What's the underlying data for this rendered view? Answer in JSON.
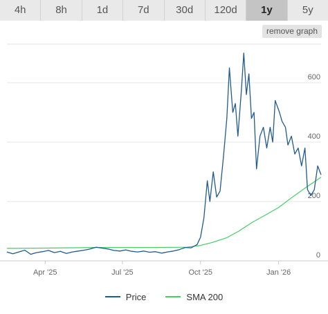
{
  "tabs": [
    {
      "label": "4h"
    },
    {
      "label": "8h"
    },
    {
      "label": "1d"
    },
    {
      "label": "7d"
    },
    {
      "label": "30d"
    },
    {
      "label": "120d"
    },
    {
      "label": "1y"
    },
    {
      "label": "5y"
    }
  ],
  "active_tab": "1y",
  "remove_graph_label": "remove graph",
  "colors": {
    "price": "#1f5a8f",
    "sma": "#44cc66",
    "grid": "#e6e6e6",
    "axis": "#c8c8c8"
  },
  "legend": {
    "price_label": "Price",
    "sma_label": "SMA 200"
  },
  "chart_data": {
    "type": "line",
    "title": "",
    "xlabel": "",
    "ylabel": "",
    "x_range": [
      "2025-02-15",
      "2026-02-20"
    ],
    "ylim": [
      0,
      730
    ],
    "y_ticks": [
      0,
      200,
      400,
      600
    ],
    "x_ticks": [
      {
        "label": "Apr '25",
        "date": "2025-04-01"
      },
      {
        "label": "Jul '25",
        "date": "2025-07-01"
      },
      {
        "label": "Oct '25",
        "date": "2025-10-01"
      },
      {
        "label": "Jan '26",
        "date": "2026-01-01"
      }
    ],
    "grid": true,
    "legend_position": "bottom",
    "series": [
      {
        "name": "Price",
        "points": [
          [
            "2025-02-15",
            30
          ],
          [
            "2025-02-22",
            24
          ],
          [
            "2025-03-01",
            30
          ],
          [
            "2025-03-08",
            36
          ],
          [
            "2025-03-15",
            22
          ],
          [
            "2025-03-22",
            28
          ],
          [
            "2025-03-29",
            31
          ],
          [
            "2025-04-05",
            35
          ],
          [
            "2025-04-12",
            28
          ],
          [
            "2025-04-19",
            32
          ],
          [
            "2025-04-26",
            25
          ],
          [
            "2025-05-03",
            30
          ],
          [
            "2025-05-10",
            33
          ],
          [
            "2025-05-17",
            36
          ],
          [
            "2025-05-24",
            40
          ],
          [
            "2025-05-31",
            46
          ],
          [
            "2025-06-07",
            43
          ],
          [
            "2025-06-14",
            40
          ],
          [
            "2025-06-21",
            35
          ],
          [
            "2025-06-28",
            33
          ],
          [
            "2025-07-05",
            37
          ],
          [
            "2025-07-12",
            32
          ],
          [
            "2025-07-19",
            30
          ],
          [
            "2025-07-26",
            33
          ],
          [
            "2025-08-02",
            29
          ],
          [
            "2025-08-09",
            31
          ],
          [
            "2025-08-16",
            26
          ],
          [
            "2025-08-23",
            30
          ],
          [
            "2025-08-30",
            33
          ],
          [
            "2025-09-06",
            38
          ],
          [
            "2025-09-13",
            45
          ],
          [
            "2025-09-20",
            44
          ],
          [
            "2025-09-27",
            55
          ],
          [
            "2025-10-01",
            80
          ],
          [
            "2025-10-05",
            145
          ],
          [
            "2025-10-09",
            270
          ],
          [
            "2025-10-12",
            200
          ],
          [
            "2025-10-16",
            300
          ],
          [
            "2025-10-20",
            215
          ],
          [
            "2025-10-24",
            235
          ],
          [
            "2025-10-28",
            350
          ],
          [
            "2025-11-01",
            480
          ],
          [
            "2025-11-04",
            650
          ],
          [
            "2025-11-08",
            500
          ],
          [
            "2025-11-11",
            530
          ],
          [
            "2025-11-14",
            420
          ],
          [
            "2025-11-18",
            570
          ],
          [
            "2025-11-21",
            700
          ],
          [
            "2025-11-24",
            560
          ],
          [
            "2025-11-27",
            630
          ],
          [
            "2025-11-30",
            480
          ],
          [
            "2025-12-03",
            500
          ],
          [
            "2025-12-06",
            310
          ],
          [
            "2025-12-10",
            420
          ],
          [
            "2025-12-14",
            450
          ],
          [
            "2025-12-18",
            380
          ],
          [
            "2025-12-22",
            450
          ],
          [
            "2025-12-25",
            400
          ],
          [
            "2025-12-28",
            540
          ],
          [
            "2026-01-02",
            500
          ],
          [
            "2026-01-05",
            470
          ],
          [
            "2026-01-09",
            450
          ],
          [
            "2026-01-12",
            390
          ],
          [
            "2026-01-16",
            420
          ],
          [
            "2026-01-20",
            360
          ],
          [
            "2026-01-24",
            380
          ],
          [
            "2026-01-28",
            320
          ],
          [
            "2026-02-01",
            380
          ],
          [
            "2026-02-04",
            240
          ],
          [
            "2026-02-08",
            220
          ],
          [
            "2026-02-12",
            240
          ],
          [
            "2026-02-16",
            320
          ],
          [
            "2026-02-20",
            290
          ]
        ]
      },
      {
        "name": "SMA 200",
        "points": [
          [
            "2025-02-15",
            42
          ],
          [
            "2025-04-01",
            43
          ],
          [
            "2025-06-01",
            45
          ],
          [
            "2025-08-01",
            45
          ],
          [
            "2025-09-15",
            46
          ],
          [
            "2025-10-01",
            52
          ],
          [
            "2025-10-15",
            62
          ],
          [
            "2025-11-01",
            78
          ],
          [
            "2025-11-15",
            100
          ],
          [
            "2025-12-01",
            130
          ],
          [
            "2025-12-15",
            152
          ],
          [
            "2026-01-01",
            180
          ],
          [
            "2026-01-15",
            210
          ],
          [
            "2026-02-01",
            245
          ],
          [
            "2026-02-20",
            282
          ]
        ]
      }
    ]
  }
}
